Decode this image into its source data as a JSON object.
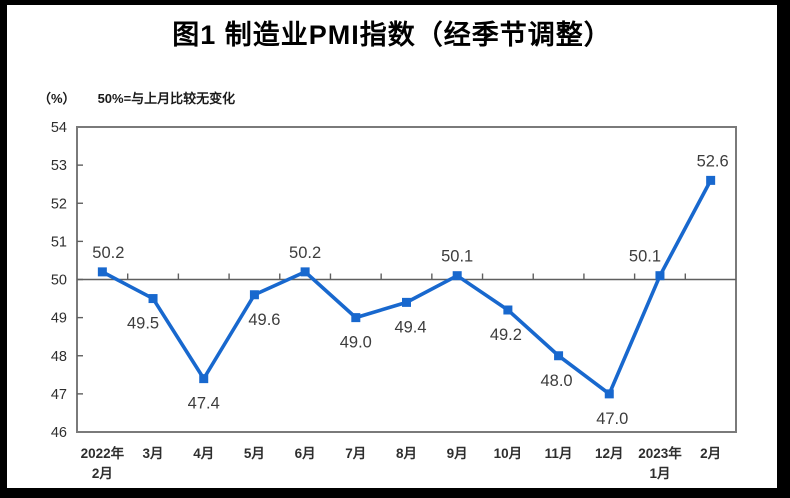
{
  "title": "图1  制造业PMI指数（经季节调整）",
  "subtitle": {
    "unit": "（%）",
    "note": "50%=与上月比较无变化"
  },
  "chart_data": {
    "type": "line",
    "title": "图1  制造业PMI指数（经季节调整）",
    "unit_label": "（%）",
    "reference_note": "50%=与上月比较无变化",
    "categories": [
      [
        "2022年",
        "2月"
      ],
      [
        "3月"
      ],
      [
        "4月"
      ],
      [
        "5月"
      ],
      [
        "6月"
      ],
      [
        "7月"
      ],
      [
        "8月"
      ],
      [
        "9月"
      ],
      [
        "10月"
      ],
      [
        "11月"
      ],
      [
        "12月"
      ],
      [
        "2023年",
        "1月"
      ],
      [
        "2月"
      ]
    ],
    "values": [
      50.2,
      49.5,
      47.4,
      49.6,
      50.2,
      49.0,
      49.4,
      50.1,
      49.2,
      48.0,
      47.0,
      50.1,
      52.6
    ],
    "data_labels": [
      "50.2",
      "49.5",
      "47.4",
      "49.6",
      "50.2",
      "49.0",
      "49.4",
      "50.1",
      "49.2",
      "48.0",
      "47.0",
      "50.1",
      "52.6"
    ],
    "label_side": [
      "above",
      "below",
      "below",
      "below",
      "above",
      "below",
      "below",
      "above",
      "below",
      "below",
      "below",
      "above",
      "above"
    ],
    "label_dx": [
      6,
      -10,
      0,
      10,
      0,
      0,
      4,
      0,
      -2,
      -2,
      3,
      -15,
      2
    ],
    "ylim": [
      46,
      54
    ],
    "yticks": [
      46,
      47,
      48,
      49,
      50,
      51,
      52,
      53,
      54
    ],
    "reference_line_y": 50,
    "grid": "off",
    "legend": "none",
    "series_name": "制造业PMI指数",
    "marker": "square"
  },
  "colors": {
    "line": "#1868CE",
    "marker": "#1868CE",
    "axis": "#5f5f5f",
    "plot_border": "#7a7a7a",
    "tick_label": "#2e2e2e",
    "data_label": "#3d3d3d",
    "frame": "#000000"
  }
}
